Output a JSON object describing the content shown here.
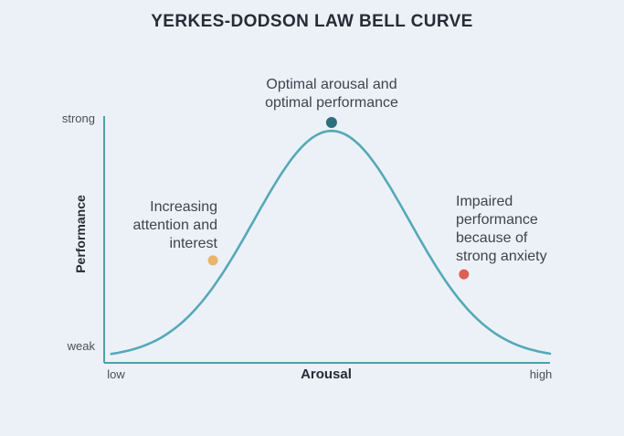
{
  "title": "YERKES-DODSON LAW BELL CURVE",
  "colors": {
    "background": "#ECF1F8",
    "curve": "#55A9B6",
    "axis": "#4E9FAE",
    "title_text": "#262B35",
    "annotation_text": "#3E434D",
    "tick_text": "#4A4F57"
  },
  "chart_data": {
    "type": "line",
    "title": "YERKES-DODSON LAW BELL CURVE",
    "xlabel": "Arousal",
    "ylabel": "Performance",
    "x_tick_labels": [
      "low",
      "high"
    ],
    "y_tick_labels": [
      "weak",
      "strong"
    ],
    "grid": false,
    "legend": false,
    "curve": {
      "shape": "gaussian",
      "description": "Inverted-U bell curve: performance rises with arousal to an optimum, then falls",
      "peak_x": 0.51,
      "peak_y": 0.94,
      "sigma": 0.174,
      "baseline_y": 0.02,
      "x_domain": [
        0.016,
        1.0
      ]
    },
    "annotations": [
      {
        "id": "increasing",
        "label": "Increasing\nattention and\ninterest",
        "dot": {
          "x": 0.244,
          "y": 0.415
        },
        "color": "#ECB36B",
        "align": "right"
      },
      {
        "id": "optimal",
        "label": "Optimal arousal and\noptimal performance",
        "dot": {
          "x": 0.51,
          "y": 0.974
        },
        "color": "#2C6F7F",
        "align": "center"
      },
      {
        "id": "impaired",
        "label": "Impaired\nperformance\nbecause of\nstrong anxiety",
        "dot": {
          "x": 0.807,
          "y": 0.359
        },
        "color": "#DD6052",
        "align": "left"
      }
    ]
  }
}
